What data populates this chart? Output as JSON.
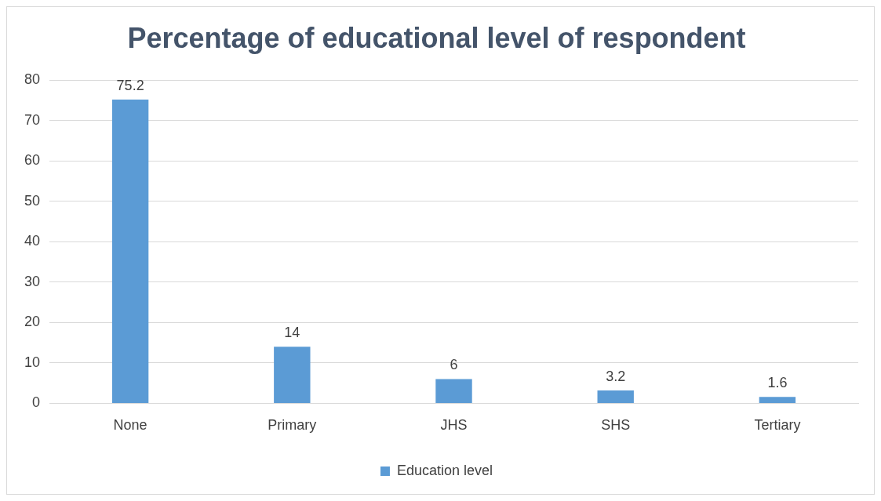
{
  "chart_data": {
    "type": "bar",
    "title": "Percentage of educational level of respondent",
    "categories": [
      "None",
      "Primary",
      "JHS",
      "SHS",
      "Tertiary"
    ],
    "series": [
      {
        "name": "Education level",
        "color": "#5b9bd5",
        "values": [
          75.2,
          14,
          6,
          3.2,
          1.6
        ]
      }
    ],
    "ylim": [
      0,
      80
    ],
    "yticks": [
      0,
      10,
      20,
      30,
      40,
      50,
      60,
      70,
      80
    ],
    "grid": "y",
    "legend": "bottom",
    "data_labels": true
  }
}
